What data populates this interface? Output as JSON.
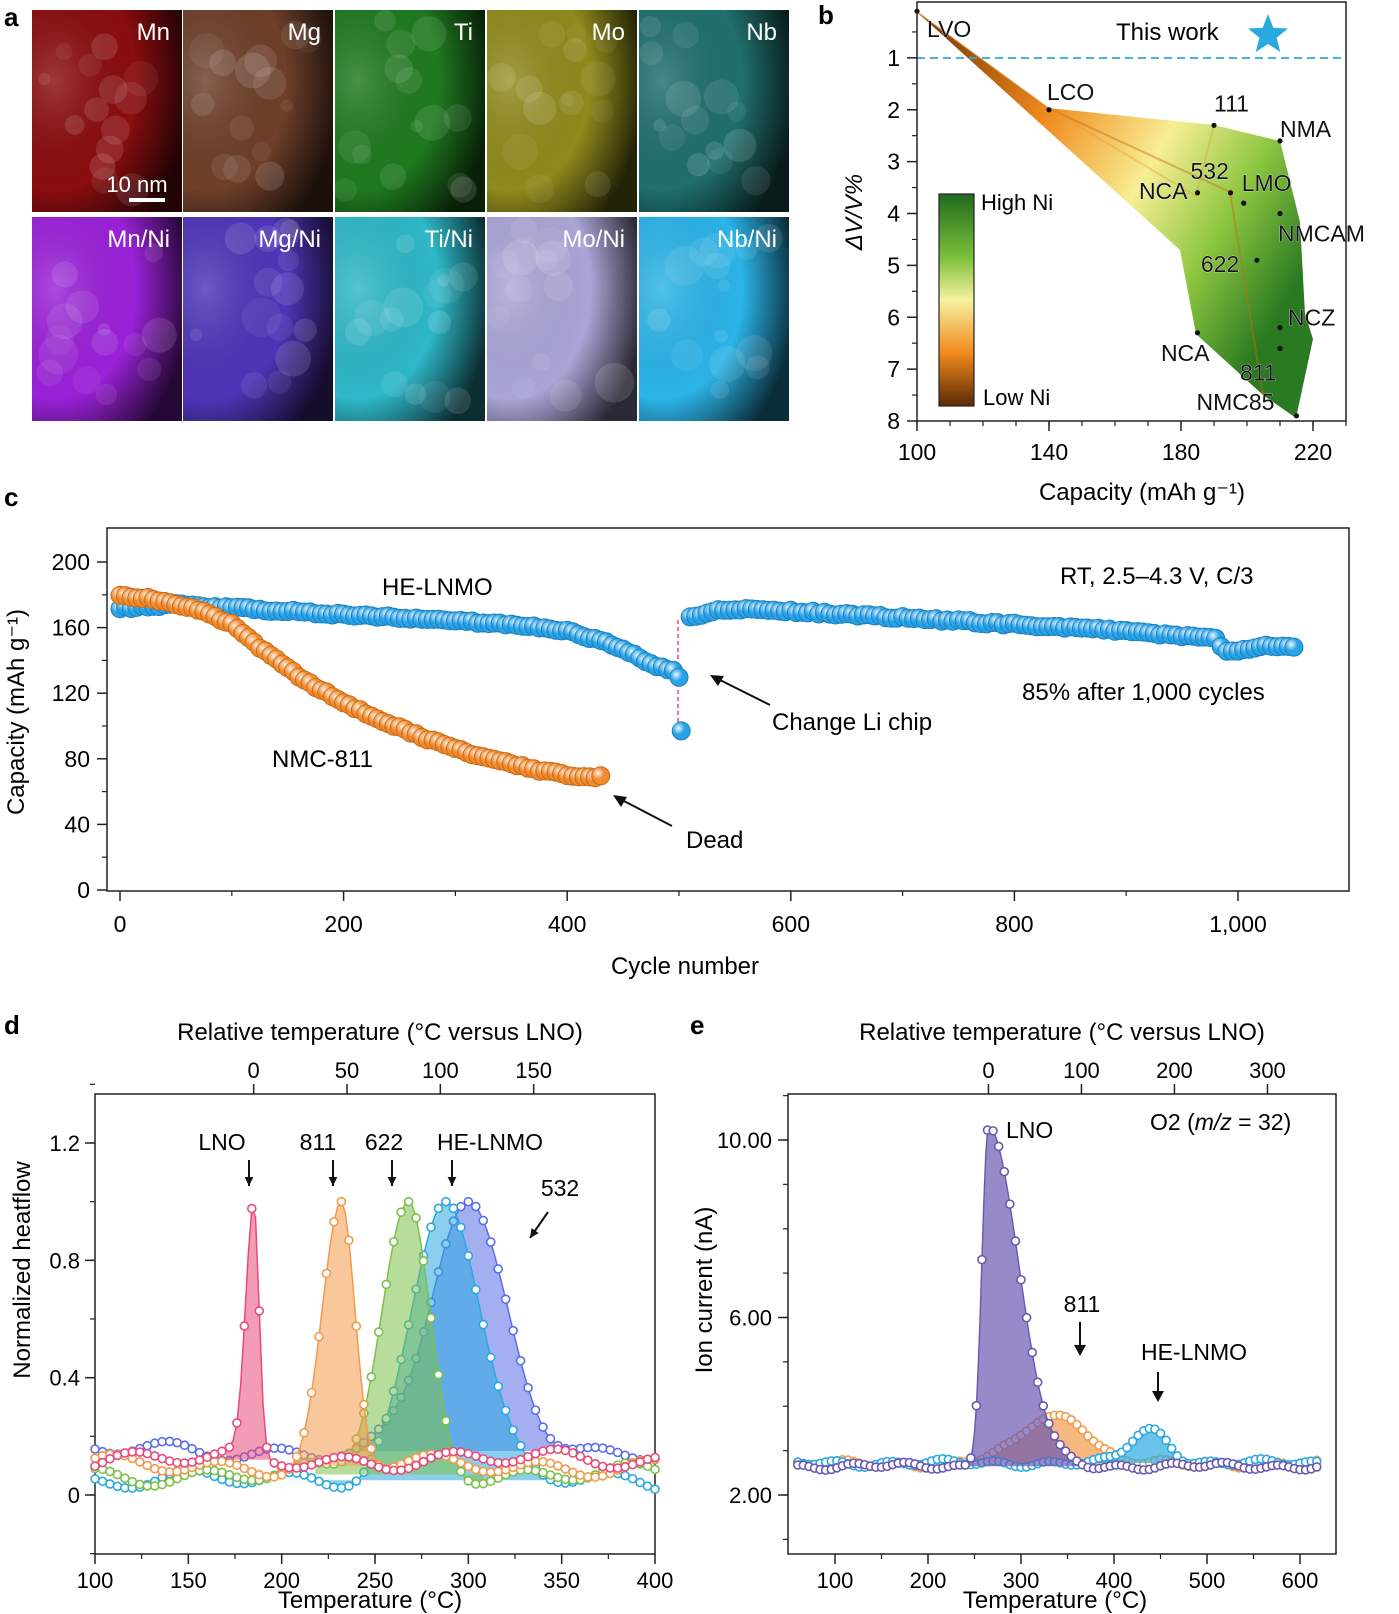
{
  "figure": {
    "panel_labels": [
      "a",
      "b",
      "c",
      "d",
      "e"
    ]
  },
  "panel_a": {
    "scale_bar": "10 nm",
    "tiles": [
      {
        "label": "Mn",
        "color": "#8a0d10"
      },
      {
        "label": "Mg",
        "color": "#6e3f2a"
      },
      {
        "label": "Ti",
        "color": "#1f7a1f"
      },
      {
        "label": "Mo",
        "color": "#8f8a1c"
      },
      {
        "label": "Nb",
        "color": "#1f6f6c"
      },
      {
        "label": "Mn/Ni",
        "color": "#9a21d8"
      },
      {
        "label": "Mg/Ni",
        "color": "#4e35b8"
      },
      {
        "label": "Ti/Ni",
        "color": "#2eb8c8"
      },
      {
        "label": "Mo/Ni",
        "color": "#a9a6d6"
      },
      {
        "label": "Nb/Ni",
        "color": "#2bb4e8"
      }
    ]
  },
  "chart_data": [
    {
      "panel": "b",
      "type": "scatter",
      "xlabel": "Capacity (mAh g⁻¹)",
      "ylabel": "ΔV/V%",
      "xlim": [
        100,
        230
      ],
      "ylim": [
        8,
        0
      ],
      "xticks": [
        "100",
        "140",
        "180",
        "220"
      ],
      "yticks": [
        "1",
        "2",
        "3",
        "4",
        "5",
        "6",
        "7",
        "8"
      ],
      "reference_line": {
        "y": 1,
        "label": "This work",
        "color": "#29a9e0"
      },
      "colorbar": {
        "high": "High Ni",
        "low": "Low Ni"
      },
      "points": [
        {
          "name": "LVO",
          "x": 100,
          "y": 0.1
        },
        {
          "name": "LCO",
          "x": 140,
          "y": 2.0
        },
        {
          "name": "111",
          "x": 190,
          "y": 2.3
        },
        {
          "name": "NMA",
          "x": 210,
          "y": 2.6
        },
        {
          "name": "532",
          "x": 195,
          "y": 3.6
        },
        {
          "name": "LMO",
          "x": 199,
          "y": 3.8
        },
        {
          "name": "NCA",
          "x": 185,
          "y": 3.6
        },
        {
          "name": "NMCAM",
          "x": 210,
          "y": 4.0
        },
        {
          "name": "622",
          "x": 203,
          "y": 4.9
        },
        {
          "name": "NCZ",
          "x": 210,
          "y": 6.2
        },
        {
          "name": "NCA",
          "x": 185,
          "y": 6.3
        },
        {
          "name": "811",
          "x": 210,
          "y": 6.6
        },
        {
          "name": "NMC85",
          "x": 215,
          "y": 7.9
        }
      ]
    },
    {
      "panel": "c",
      "type": "scatter",
      "xlabel": "Cycle number",
      "ylabel": "Capacity (mAh g⁻¹)",
      "xlim": [
        -10,
        1090
      ],
      "ylim": [
        0,
        220
      ],
      "xticks": [
        "0",
        "200",
        "400",
        "600",
        "800",
        "1,000"
      ],
      "yticks": [
        "0",
        "40",
        "80",
        "120",
        "160",
        "200"
      ],
      "conditions": "RT, 2.5–4.3 V, C/3",
      "retention": "85% after 1,000 cycles",
      "annotations": [
        "Change Li chip",
        "Dead"
      ],
      "series": [
        {
          "name": "HE-LNMO",
          "color": "#29a3e8",
          "x": [
            0,
            25,
            50,
            100,
            150,
            200,
            250,
            300,
            350,
            400,
            430,
            460,
            480,
            495,
            500,
            502,
            510,
            530,
            560,
            600,
            650,
            700,
            750,
            800,
            850,
            900,
            950,
            980,
            990,
            1000,
            1020,
            1050
          ],
          "y": [
            172,
            173,
            174,
            172,
            170,
            168,
            166,
            164,
            162,
            158,
            152,
            144,
            136,
            134,
            130,
            97,
            166,
            170,
            171,
            170,
            168,
            166,
            164,
            162,
            160,
            158,
            155,
            153,
            145,
            146,
            149,
            148
          ]
        },
        {
          "name": "NMC-811",
          "color": "#f08a2c",
          "x": [
            0,
            25,
            50,
            75,
            100,
            125,
            150,
            175,
            200,
            225,
            250,
            275,
            300,
            325,
            350,
            375,
            400,
            430
          ],
          "y": [
            180,
            178,
            174,
            170,
            162,
            148,
            135,
            124,
            114,
            106,
            99,
            92,
            86,
            81,
            77,
            73,
            70,
            69
          ]
        }
      ]
    },
    {
      "panel": "d",
      "type": "area",
      "xlabel": "Temperature (°C)",
      "ylabel": "Normalized heatflow",
      "top_xlabel": "Relative temperature (°C versus LNO)",
      "xlim": [
        100,
        400
      ],
      "ylim": [
        -0.2,
        1.4
      ],
      "xticks": [
        "100",
        "150",
        "200",
        "250",
        "300",
        "350",
        "400"
      ],
      "yticks": [
        "0",
        "0.4",
        "0.8",
        "1.2"
      ],
      "top_ticks": [
        "0",
        "50",
        "100",
        "150"
      ],
      "series": [
        {
          "name": "LNO",
          "color": "#e84a7a",
          "peak_x": 185,
          "peak_y": 1.0
        },
        {
          "name": "811",
          "color": "#f39a4a",
          "peak_x": 232,
          "peak_y": 1.0
        },
        {
          "name": "622",
          "color": "#7cc04a",
          "peak_x": 268,
          "peak_y": 1.0
        },
        {
          "name": "HE-LNMO",
          "color": "#29a9e0",
          "peak_x": 288,
          "peak_y": 1.0
        },
        {
          "name": "532",
          "color": "#5a6ee8",
          "peak_x": 300,
          "peak_y": 1.0
        }
      ]
    },
    {
      "panel": "e",
      "type": "area",
      "xlabel": "Temperature (°C)",
      "ylabel": "Ion current (nA)",
      "top_xlabel": "Relative temperature (°C versus LNO)",
      "legend_prefix": "O2 (",
      "legend_mz": "m/z",
      "legend_suffix": " = 32)",
      "xlim": [
        50,
        630
      ],
      "ylim": [
        0.5,
        11.0
      ],
      "xticks": [
        "100",
        "200",
        "300",
        "400",
        "500",
        "600"
      ],
      "yticks": [
        "2.00",
        "6.00",
        "10.00"
      ],
      "top_ticks": [
        "0",
        "100",
        "200",
        "300"
      ],
      "series": [
        {
          "name": "LNO",
          "color": "#6a58b0",
          "peak_x": 265,
          "peak_y": 10.3
        },
        {
          "name": "811",
          "color": "#f39a4a",
          "peak_x": 340,
          "peak_y": 3.8
        },
        {
          "name": "HE-LNMO",
          "color": "#29a9e0",
          "peak_x": 440,
          "peak_y": 3.5
        }
      ]
    }
  ]
}
